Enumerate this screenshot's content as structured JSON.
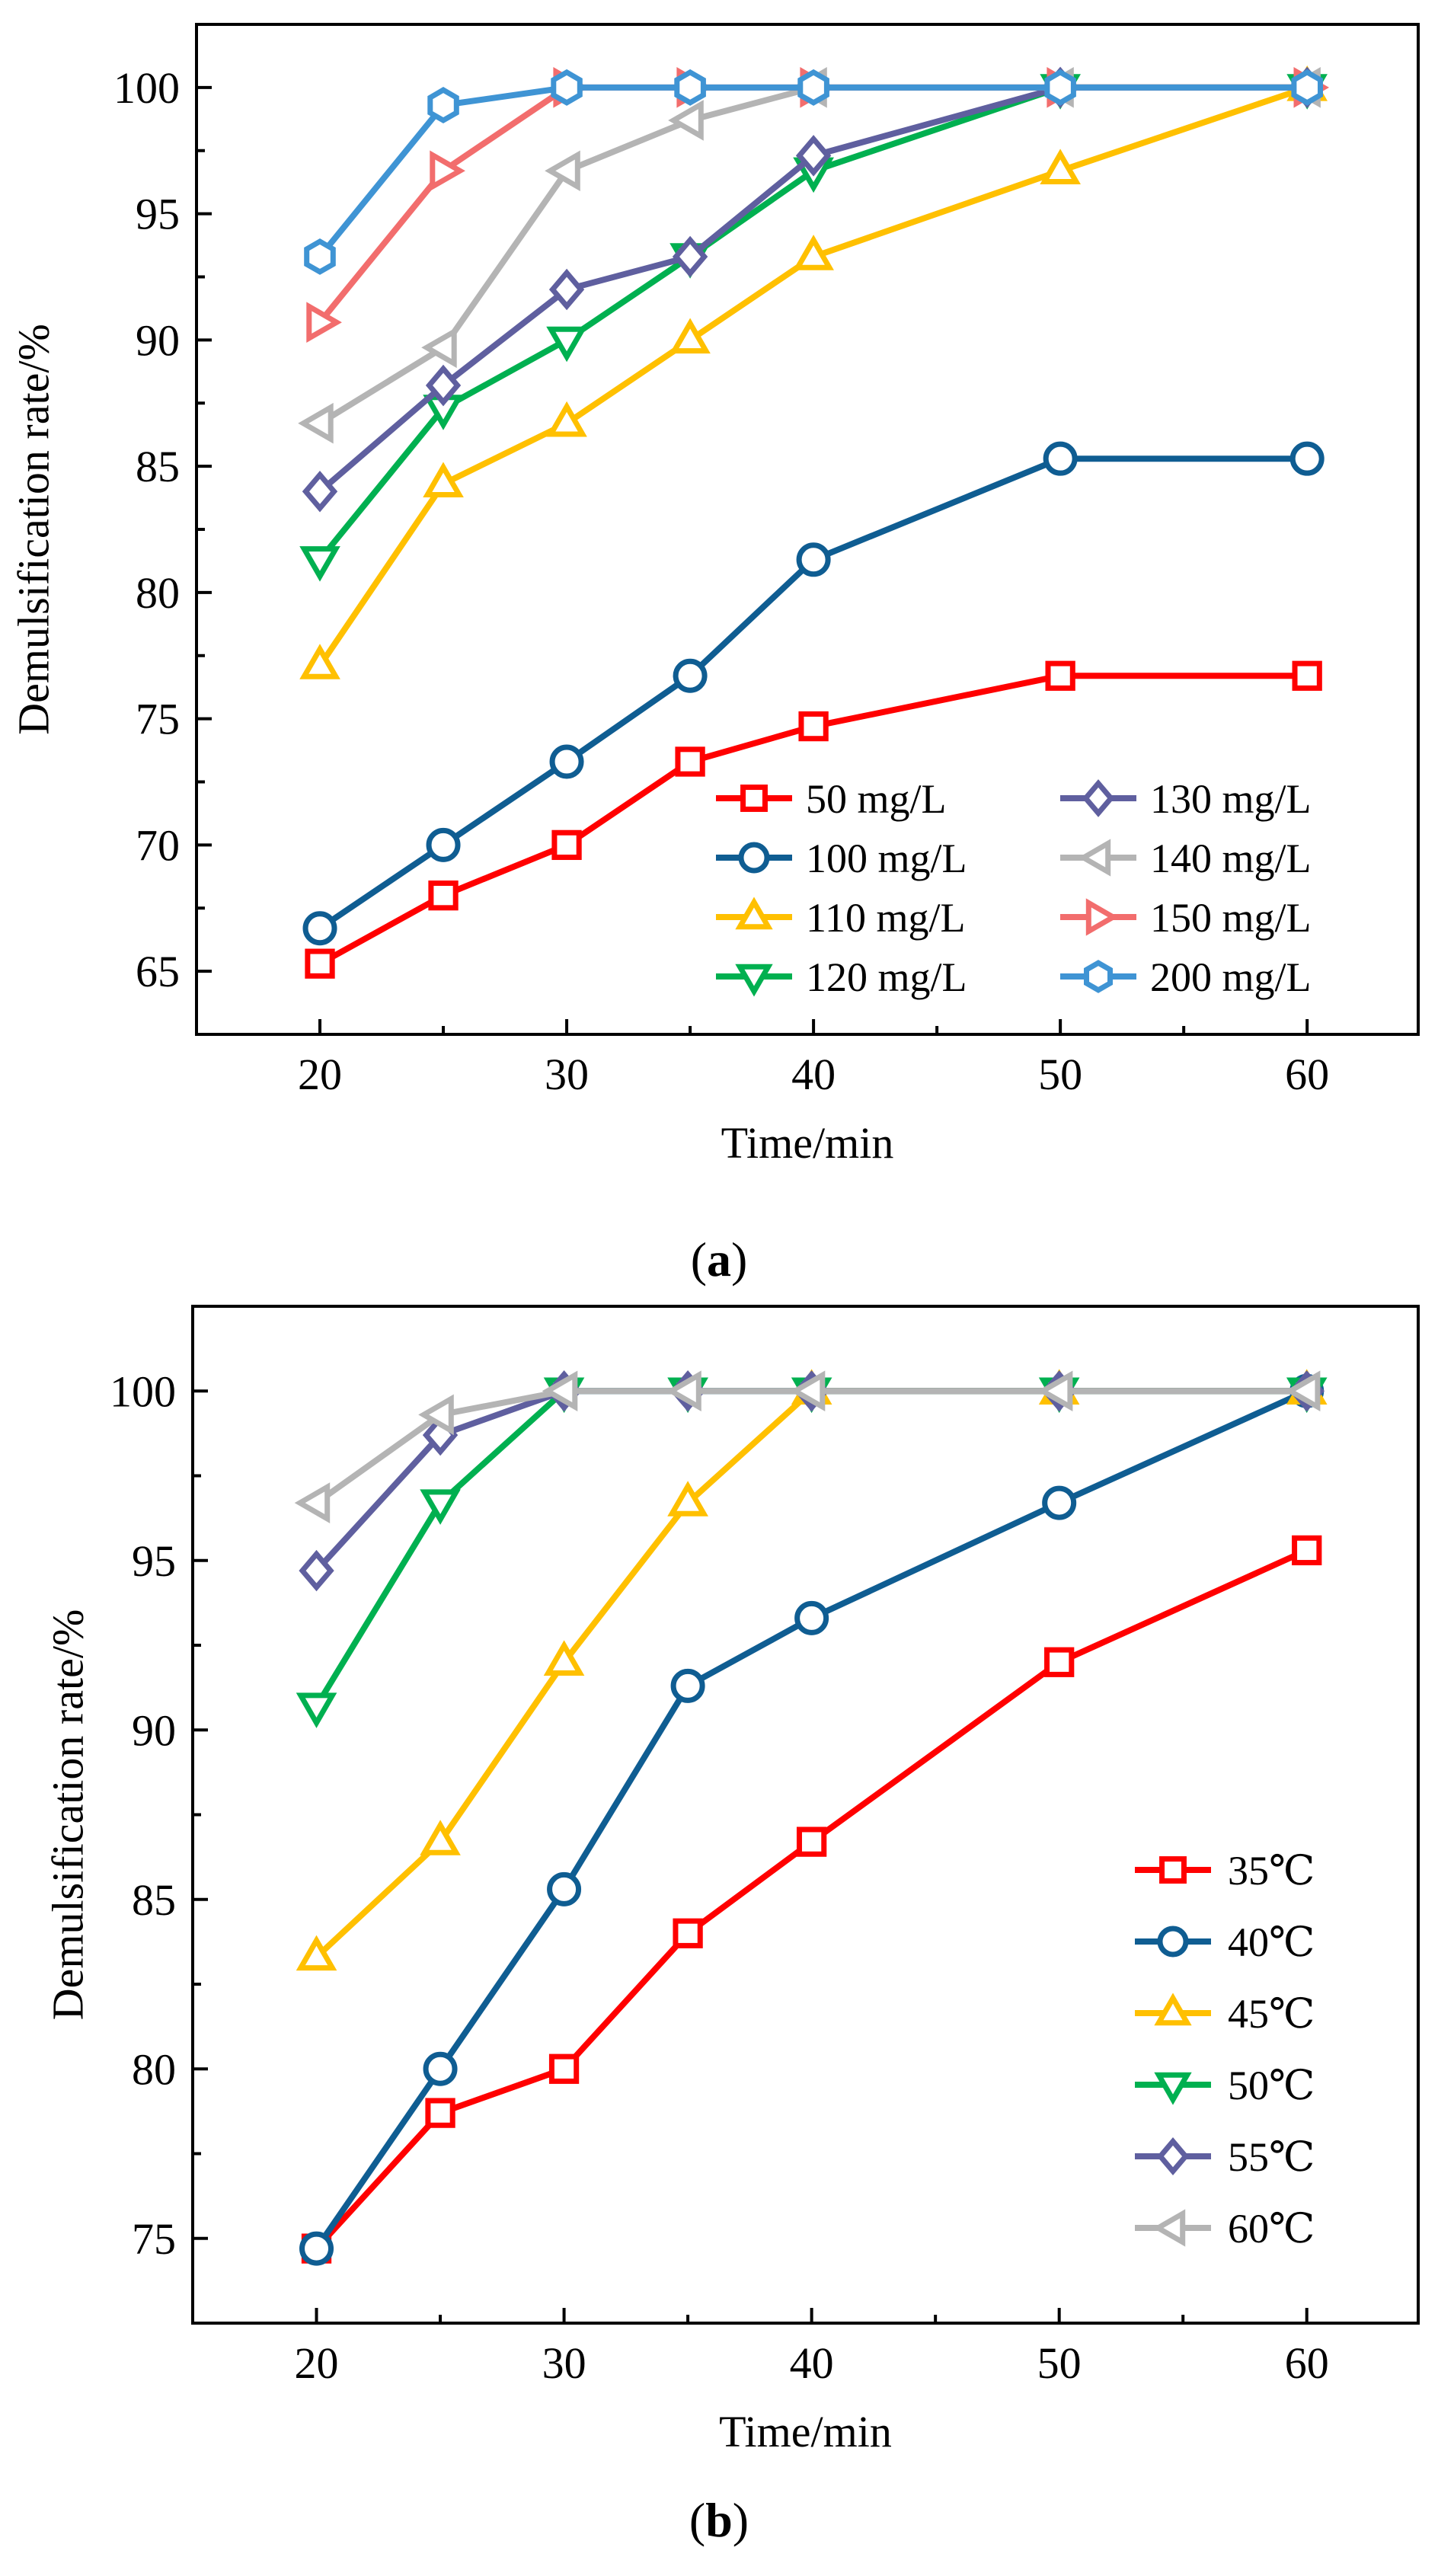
{
  "chart_data": [
    {
      "type": "line",
      "caption": "a",
      "xlabel": "Time/min",
      "ylabel": "Demulsification rate/%",
      "xlim": [
        15,
        64.5
      ],
      "ylim": [
        62.5,
        102.5
      ],
      "xticks": [
        20,
        30,
        40,
        50,
        60
      ],
      "yticks": [
        65,
        70,
        75,
        80,
        85,
        90,
        95,
        100
      ],
      "x": [
        20,
        25,
        30,
        35,
        40,
        50,
        60
      ],
      "legend": {
        "location": "bottom-right",
        "columns": 2
      },
      "series": [
        {
          "name": "50 mg/L",
          "color": "#ff0000",
          "marker": "square",
          "values": [
            65.3,
            68.0,
            70.0,
            73.3,
            74.7,
            76.7,
            76.7
          ]
        },
        {
          "name": "100 mg/L",
          "color": "#0f5d92",
          "marker": "circle",
          "values": [
            66.7,
            70.0,
            73.3,
            76.7,
            81.3,
            85.3,
            85.3
          ]
        },
        {
          "name": "110 mg/L",
          "color": "#ffc000",
          "marker": "triangle-up",
          "values": [
            77.1,
            84.3,
            86.7,
            90.0,
            93.3,
            96.7,
            100.0
          ]
        },
        {
          "name": "120 mg/L",
          "color": "#00b050",
          "marker": "triangle-down",
          "values": [
            81.3,
            87.3,
            90.0,
            93.3,
            96.7,
            100.0,
            100.0
          ]
        },
        {
          "name": "130 mg/L",
          "color": "#5f5f9f",
          "marker": "diamond",
          "values": [
            84.0,
            88.2,
            92.0,
            93.3,
            97.3,
            100.0,
            100.0
          ]
        },
        {
          "name": "140 mg/L",
          "color": "#b4b4b4",
          "marker": "triangle-left",
          "values": [
            86.7,
            89.7,
            96.7,
            98.7,
            100.0,
            100.0,
            100.0
          ]
        },
        {
          "name": "150 mg/L",
          "color": "#f26d6d",
          "marker": "triangle-right",
          "values": [
            90.7,
            96.7,
            100.0,
            100.0,
            100.0,
            100.0,
            100.0
          ]
        },
        {
          "name": "200 mg/L",
          "color": "#3f94d4",
          "marker": "hexagon",
          "values": [
            93.3,
            99.3,
            100.0,
            100.0,
            100.0,
            100.0,
            100.0
          ]
        }
      ]
    },
    {
      "type": "line",
      "caption": "b",
      "xlabel": "Time/min",
      "ylabel": "Demulsification rate/%",
      "xlim": [
        15,
        64.5
      ],
      "ylim": [
        72.5,
        102.5
      ],
      "xticks": [
        20,
        30,
        40,
        50,
        60
      ],
      "yticks": [
        75,
        80,
        85,
        90,
        95,
        100
      ],
      "x": [
        20,
        25,
        30,
        35,
        40,
        50,
        60
      ],
      "legend": {
        "location": "right",
        "columns": 1
      },
      "series": [
        {
          "name": "35℃",
          "color": "#ff0000",
          "marker": "square",
          "values": [
            74.7,
            78.7,
            80.0,
            84.0,
            86.7,
            92.0,
            95.3
          ]
        },
        {
          "name": "40℃",
          "color": "#0f5d92",
          "marker": "circle",
          "values": [
            74.7,
            80.0,
            85.3,
            91.3,
            93.3,
            96.7,
            100.0
          ]
        },
        {
          "name": "45℃",
          "color": "#ffc000",
          "marker": "triangle-up",
          "values": [
            83.3,
            86.7,
            92.0,
            96.7,
            100.0,
            100.0,
            100.0
          ]
        },
        {
          "name": "50℃",
          "color": "#00b050",
          "marker": "triangle-down",
          "values": [
            90.7,
            96.7,
            100.0,
            100.0,
            100.0,
            100.0,
            100.0
          ]
        },
        {
          "name": "55℃",
          "color": "#5f5f9f",
          "marker": "diamond",
          "values": [
            94.7,
            98.7,
            100.0,
            100.0,
            100.0,
            100.0,
            100.0
          ]
        },
        {
          "name": "60℃",
          "color": "#b4b4b4",
          "marker": "triangle-left",
          "values": [
            96.7,
            99.3,
            100.0,
            100.0,
            100.0,
            100.0,
            100.0
          ]
        }
      ]
    }
  ]
}
